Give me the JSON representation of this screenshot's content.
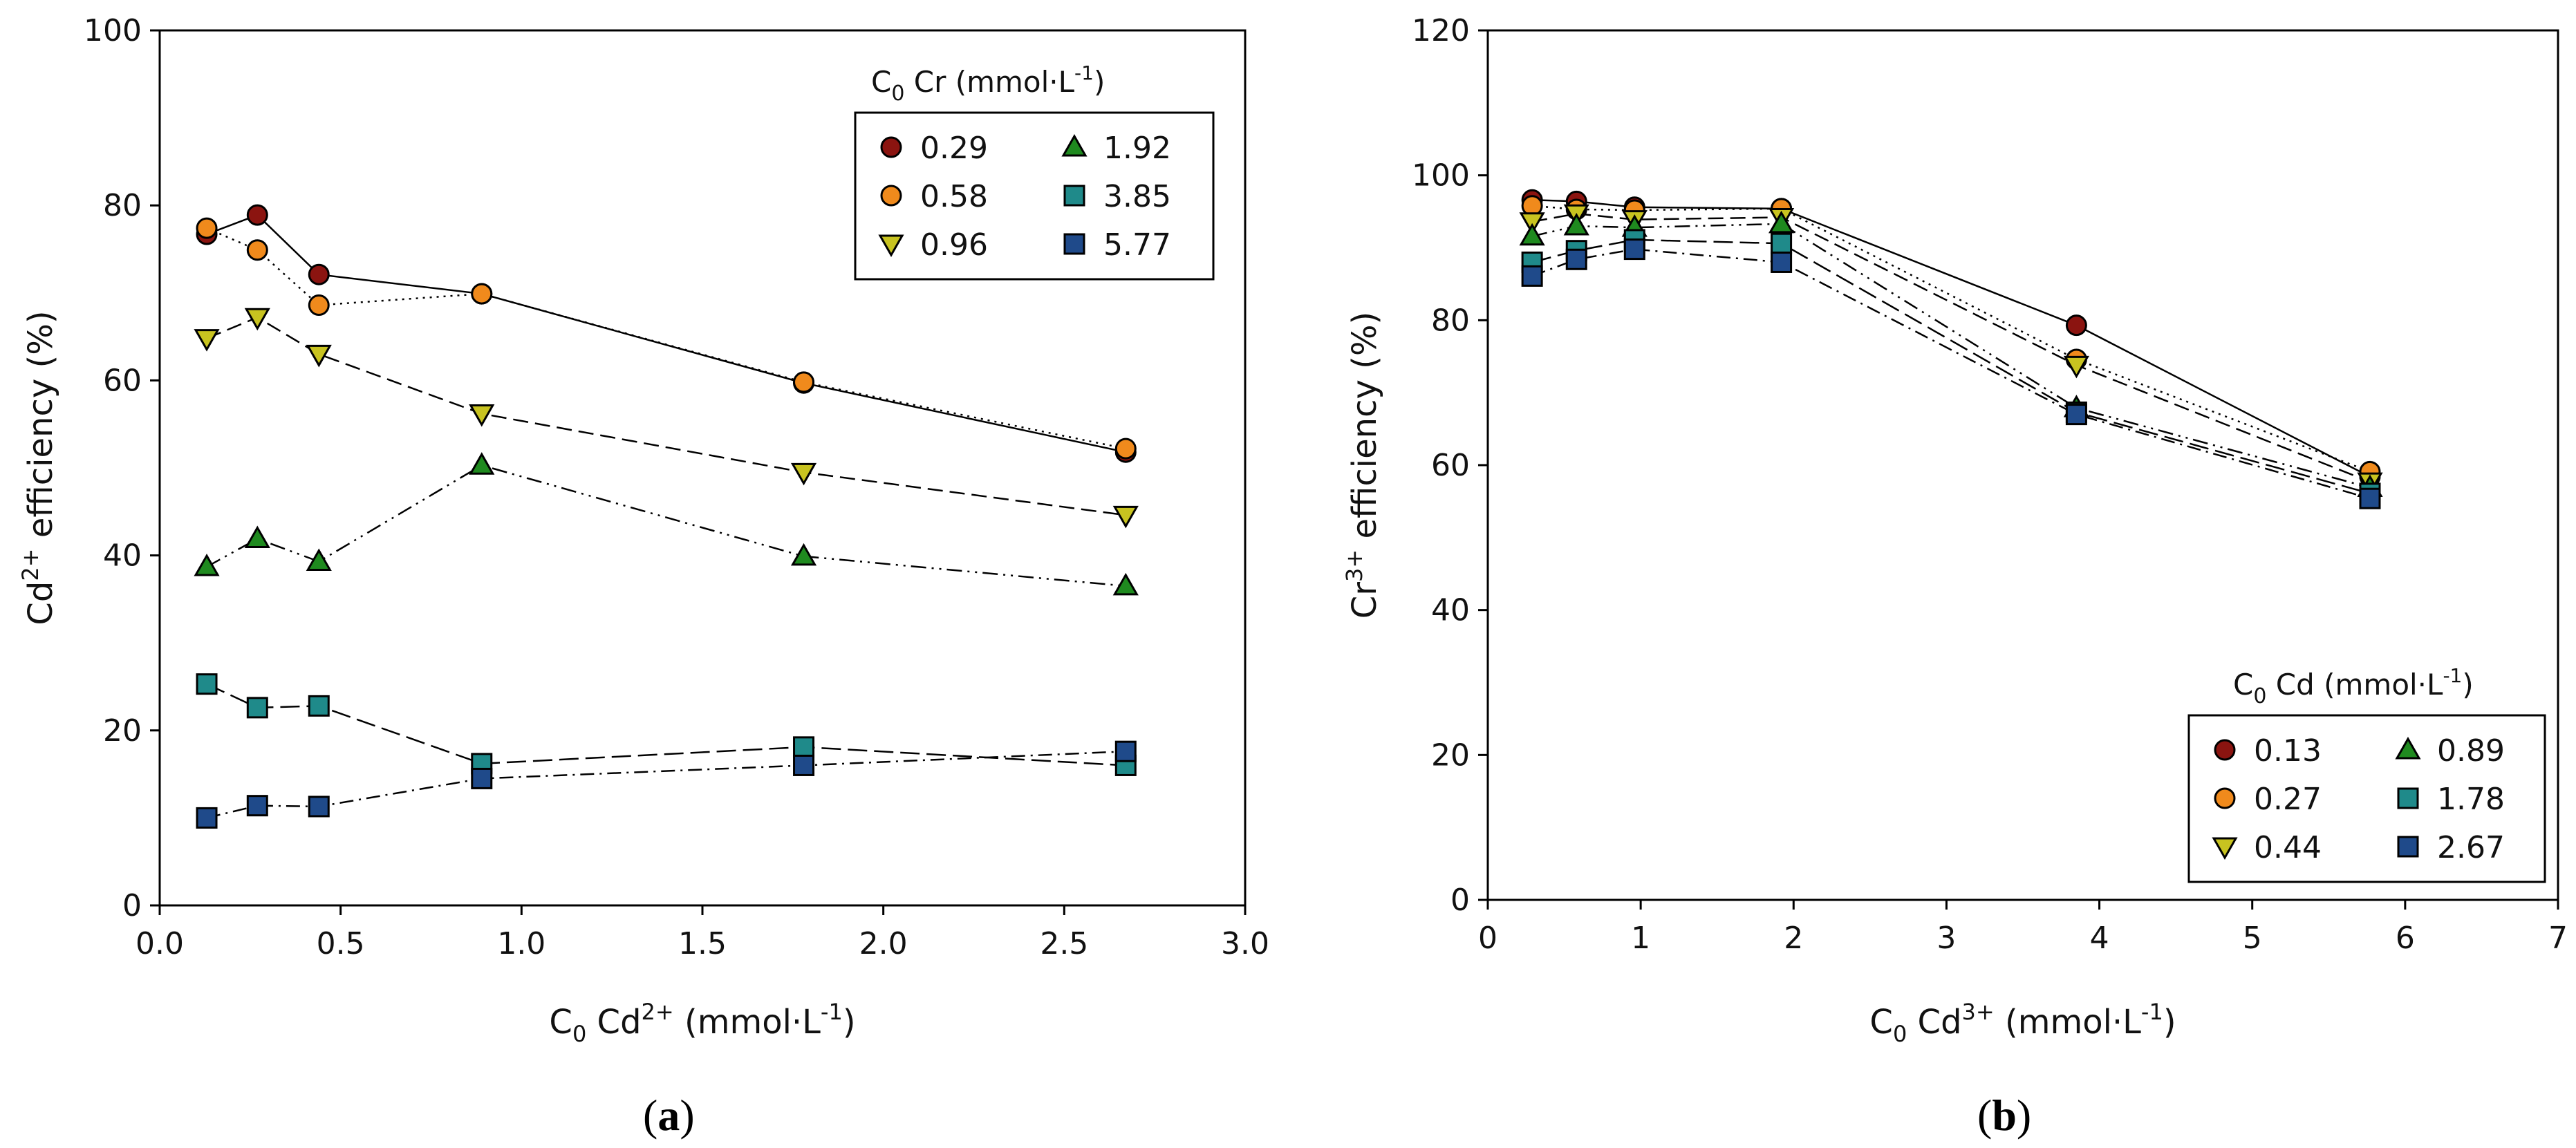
{
  "colors": {
    "dark_red": "#8b1410",
    "orange": "#f08a1c",
    "yellow": "#c8c320",
    "green": "#1f8a1f",
    "teal": "#1f8a8a",
    "navy": "#1f4a8a",
    "stroke": "#000000"
  },
  "chart_data": [
    {
      "type": "line",
      "panel_label": {
        "open": "(",
        "letter": "a",
        "close": ")"
      },
      "xlabel": {
        "main": "C",
        "sub": "0",
        "mid": " Cd",
        "sup": "2+",
        "unit_pre": " (mmol·L",
        "unit_sup": "-1",
        "unit_post": ")"
      },
      "ylabel": {
        "main": "Cd",
        "sup": "2+",
        "rest": " efficiency (%)"
      },
      "xlim": [
        0,
        3
      ],
      "ylim": [
        0,
        100
      ],
      "xticks": [
        "0.0",
        "0.5",
        "1.0",
        "1.5",
        "2.0",
        "2.5",
        "3.0"
      ],
      "yticks": [
        "0",
        "20",
        "40",
        "60",
        "80",
        "100"
      ],
      "x": [
        0.13,
        0.27,
        0.44,
        0.89,
        1.78,
        2.67
      ],
      "legend": {
        "title": {
          "main": "C",
          "sub": "0",
          "rest": " Cr (mmol·L",
          "sup": "-1",
          "close": ")"
        },
        "position": "top-right"
      },
      "series": [
        {
          "name": "0.29",
          "values": [
            76.7,
            78.9,
            72.1,
            69.9,
            59.7,
            51.8
          ],
          "marker": "circle",
          "color": "dark_red",
          "dash": ""
        },
        {
          "name": "0.58",
          "values": [
            77.4,
            74.9,
            68.6,
            69.9,
            59.8,
            52.2
          ],
          "marker": "circle",
          "color": "orange",
          "dash": "3 7"
        },
        {
          "name": "0.96",
          "values": [
            64.8,
            67.2,
            63.0,
            56.2,
            49.5,
            44.6
          ],
          "marker": "tri-down",
          "color": "yellow",
          "dash": "22 10"
        },
        {
          "name": "1.92",
          "values": [
            38.7,
            41.9,
            39.3,
            50.3,
            39.9,
            36.5
          ],
          "marker": "tri-up",
          "color": "green",
          "dash": "22 8 3 8 3 8"
        },
        {
          "name": "3.85",
          "values": [
            25.3,
            22.6,
            22.8,
            16.2,
            18.1,
            16.0
          ],
          "marker": "square",
          "color": "teal",
          "dash": "28 10"
        },
        {
          "name": "5.77",
          "values": [
            10.0,
            11.4,
            11.3,
            14.5,
            16.0,
            17.6
          ],
          "marker": "square",
          "color": "navy",
          "dash": "20 8 3 8"
        }
      ]
    },
    {
      "type": "line",
      "panel_label": {
        "open": "(",
        "letter": "b",
        "close": ")"
      },
      "xlabel": {
        "main": "C",
        "sub": "0",
        "mid": " Cd",
        "sup": "3+",
        "unit_pre": " (mmol·L",
        "unit_sup": "-1",
        "unit_post": ")"
      },
      "ylabel": {
        "main": "Cr",
        "sup": "3+",
        "rest": " efficiency (%)"
      },
      "xlim": [
        0,
        7
      ],
      "ylim": [
        0,
        120
      ],
      "xticks": [
        "0",
        "1",
        "2",
        "3",
        "4",
        "5",
        "6",
        "7"
      ],
      "yticks": [
        "0",
        "20",
        "40",
        "60",
        "80",
        "100",
        "120"
      ],
      "x": [
        0.29,
        0.58,
        0.96,
        1.92,
        3.85,
        5.77
      ],
      "legend": {
        "title": {
          "main": "C",
          "sub": "0",
          "rest": " Cd (mmol·L",
          "sup": "-1",
          "close": ")"
        },
        "position": "bottom-right"
      },
      "series": [
        {
          "name": "0.13",
          "values": [
            96.6,
            96.4,
            95.6,
            95.4,
            79.3,
            58.4
          ],
          "marker": "circle",
          "color": "dark_red",
          "dash": ""
        },
        {
          "name": "0.27",
          "values": [
            95.8,
            95.3,
            95.2,
            95.4,
            74.6,
            59.1
          ],
          "marker": "circle",
          "color": "orange",
          "dash": "3 7"
        },
        {
          "name": "0.44",
          "values": [
            93.6,
            94.7,
            93.9,
            94.2,
            73.8,
            57.7
          ],
          "marker": "tri-down",
          "color": "yellow",
          "dash": "22 10"
        },
        {
          "name": "0.89",
          "values": [
            91.6,
            93.0,
            92.8,
            93.3,
            67.9,
            56.9
          ],
          "marker": "tri-up",
          "color": "green",
          "dash": "22 8 3 8 3 8"
        },
        {
          "name": "1.78",
          "values": [
            88.0,
            89.6,
            91.1,
            90.6,
            67.3,
            56.1
          ],
          "marker": "square",
          "color": "teal",
          "dash": "28 10"
        },
        {
          "name": "2.67",
          "values": [
            86.1,
            88.4,
            89.8,
            88.0,
            67.0,
            55.4
          ],
          "marker": "square",
          "color": "navy",
          "dash": "20 8 3 8"
        }
      ]
    }
  ]
}
